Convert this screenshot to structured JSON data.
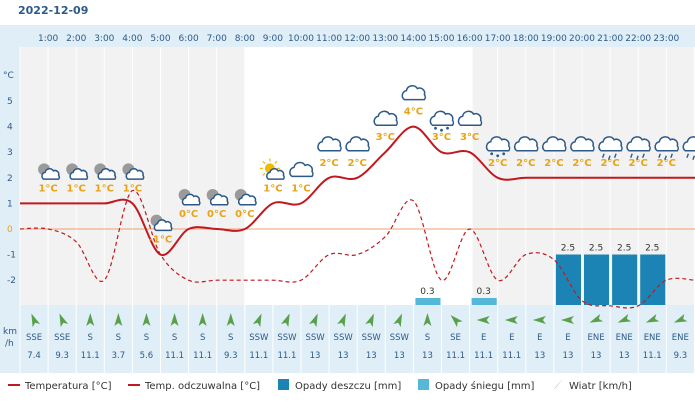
{
  "header": {
    "date": "2022-12-09"
  },
  "chart_data": {
    "type": "line",
    "hours": [
      "1:00",
      "2:00",
      "3:00",
      "4:00",
      "5:00",
      "6:00",
      "7:00",
      "8:00",
      "9:00",
      "10:00",
      "11:00",
      "12:00",
      "13:00",
      "14:00",
      "15:00",
      "16:00",
      "17:00",
      "18:00",
      "19:00",
      "20:00",
      "21:00",
      "22:00",
      "23:00"
    ],
    "y_axis": {
      "unit_label": "°C",
      "ticks": [
        5,
        4,
        3,
        2,
        1,
        0,
        -1,
        -2
      ],
      "ylim": [
        -3,
        5.5
      ]
    },
    "temperature_labels": [
      "1°C",
      "1°C",
      "1°C",
      "1°C",
      "-1°C",
      "0°C",
      "0°C",
      "0°C",
      "1°C",
      "1°C",
      "2°C",
      "2°C",
      "3°C",
      "4°C",
      "3°C",
      "3°C",
      "2°C",
      "2°C",
      "2°C",
      "2°C",
      "2°C",
      "2°C",
      "2°C"
    ],
    "series": [
      {
        "name": "Temperatura [°C]",
        "color": "#c0191f",
        "style": "solid",
        "values": [
          1,
          1,
          1,
          1,
          -1,
          0,
          0,
          0,
          1,
          1,
          2,
          2,
          3,
          4,
          3,
          3,
          2,
          2,
          2,
          2,
          2,
          2,
          2
        ]
      },
      {
        "name": "Temp. odczuwalna [°C]",
        "color": "#c0191f",
        "style": "dashed",
        "values": [
          0,
          -0.5,
          -2,
          1.5,
          -1,
          -2,
          -2,
          -2,
          -2,
          -2,
          -1,
          -1,
          -0.3,
          1.1,
          -2,
          0,
          -2,
          -1,
          -1.2,
          -2.8,
          -3,
          -3,
          -2
        ]
      }
    ],
    "precipitation": {
      "rain": {
        "name": "Opady deszczu [mm]",
        "color": "#1b84b4",
        "values": [
          0,
          0,
          0,
          0,
          0,
          0,
          0,
          0,
          0,
          0,
          0,
          0,
          0,
          0,
          0,
          0,
          0,
          0,
          0,
          2.5,
          2.5,
          2.5,
          2.5
        ]
      },
      "snow": {
        "name": "Opady śniegu [mm]",
        "color": "#55b8d8",
        "values": [
          0,
          0,
          0,
          0,
          0,
          0,
          0,
          0,
          0,
          0,
          0,
          0,
          0,
          0,
          0.3,
          0,
          0.3,
          0,
          0,
          0,
          0,
          0,
          0
        ]
      },
      "labels": [
        "",
        "",
        "",
        "",
        "",
        "",
        "",
        "",
        "",
        "",
        "",
        "",
        "",
        "",
        "0.3",
        "",
        "0.3",
        "",
        "",
        "2.5",
        "2.5",
        "2.5",
        "2.5"
      ]
    },
    "weather_icons": [
      "partly-cloudy-night-icon",
      "partly-cloudy-night-icon",
      "partly-cloudy-night-icon",
      "partly-cloudy-night-icon",
      "partly-cloudy-night-icon",
      "partly-cloudy-night-icon",
      "partly-cloudy-night-icon",
      "partly-cloudy-night-icon",
      "partly-sunny-icon",
      "cloud-icon",
      "cloud-icon",
      "cloud-icon",
      "cloud-icon",
      "cloud-icon",
      "snow-cloud-icon",
      "cloud-icon",
      "snow-cloud-icon",
      "cloud-icon",
      "cloud-icon",
      "cloud-icon",
      "rain-cloud-icon",
      "rain-cloud-icon",
      "rain-cloud-icon",
      "rain-cloud-icon"
    ],
    "wind": {
      "unit_label_top": "km",
      "unit_label_bottom": "/h",
      "directions": [
        "SSE",
        "SSE",
        "S",
        "S",
        "S",
        "S",
        "S",
        "S",
        "SSW",
        "SSW",
        "SSW",
        "SSW",
        "SSW",
        "SSW",
        "S",
        "SE",
        "E",
        "E",
        "E",
        "E",
        "ENE",
        "ENE",
        "ENE",
        "ENE"
      ],
      "speeds": [
        "7.4",
        "9.3",
        "11.1",
        "3.7",
        "5.6",
        "11.1",
        "11.1",
        "9.3",
        "11.1",
        "11.1",
        "13",
        "13",
        "13",
        "13",
        "13",
        "11.1",
        "11.1",
        "11.1",
        "13",
        "13",
        "13",
        "13",
        "11.1",
        "9.3"
      ]
    },
    "legend": [
      {
        "label": "Temperatura [°C]",
        "kind": "solid-line",
        "color": "#c0191f"
      },
      {
        "label": "Temp. odczuwalna [°C]",
        "kind": "dashed-line",
        "color": "#c0191f"
      },
      {
        "label": "Opady deszczu [mm]",
        "kind": "box",
        "color": "#1b84b4"
      },
      {
        "label": "Opady śniegu [mm]",
        "kind": "box",
        "color": "#55b8d8"
      },
      {
        "label": "Wiatr [km/h]",
        "kind": "arrow",
        "color": "#2d5a8a"
      }
    ],
    "colors": {
      "accent": "#2d5a8a",
      "axis_text": "#2d5a8a",
      "label_orange": "#e8a317",
      "zero_line": "#f0a070",
      "panel_bg": "#dfeef7",
      "night_band": "#f2f2f2"
    }
  }
}
